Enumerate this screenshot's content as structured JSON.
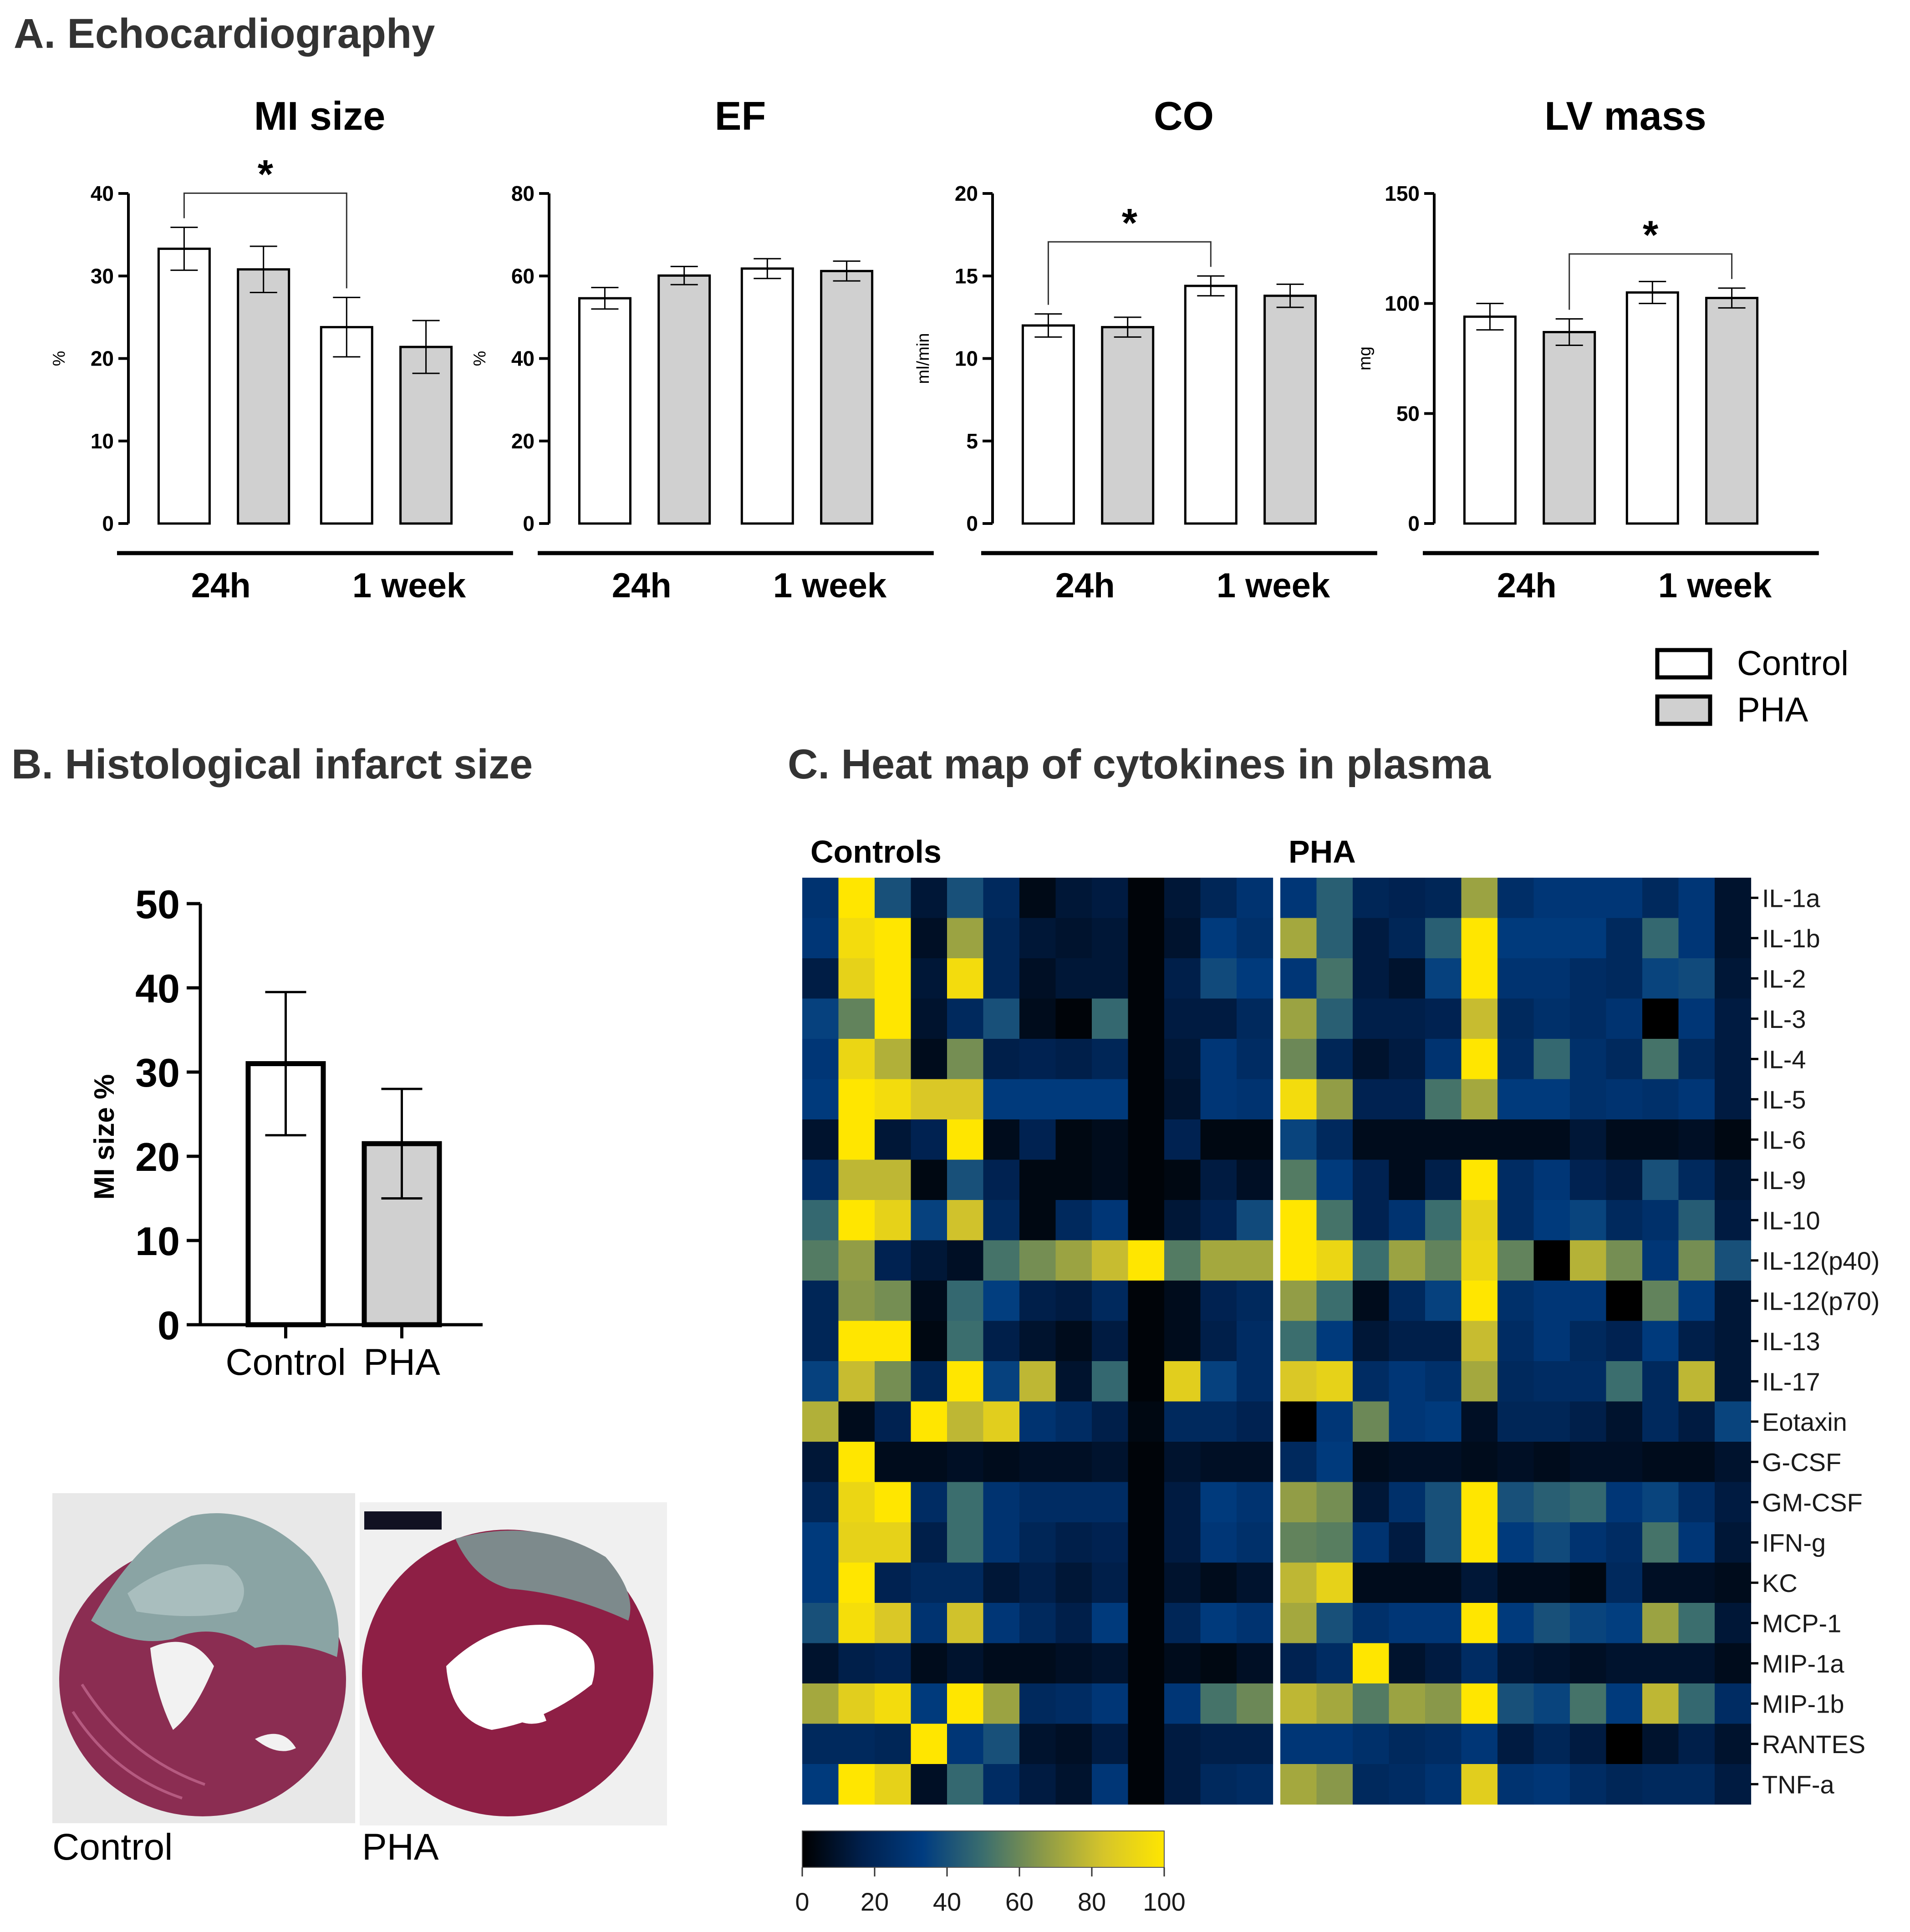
{
  "sections": {
    "a": "A. Echocardiography",
    "b": "B. Histological infarct size",
    "c": "C. Heat map of cytokines in plasma"
  },
  "legend": {
    "control": "Control",
    "pha": "PHA",
    "control_color": "#ffffff",
    "pha_color": "#d0d0d0"
  },
  "chart_data": [
    {
      "type": "bar",
      "title": "MI size",
      "ylabel": "%",
      "ylim": [
        0,
        40
      ],
      "yticks": [
        0,
        10,
        20,
        30,
        40
      ],
      "groups": [
        "24h",
        "1 week"
      ],
      "series": [
        {
          "name": "Control",
          "values": [
            33.3,
            23.8
          ],
          "errors": [
            2.6,
            3.6
          ]
        },
        {
          "name": "PHA",
          "values": [
            30.8,
            21.4
          ],
          "errors": [
            2.8,
            3.2
          ]
        }
      ],
      "significance": [
        {
          "label": "*",
          "between": [
            "Control 24h",
            "Control 1 week"
          ]
        }
      ]
    },
    {
      "type": "bar",
      "title": "EF",
      "ylabel": "%",
      "ylim": [
        0,
        80
      ],
      "yticks": [
        0,
        20,
        40,
        60,
        80
      ],
      "groups": [
        "24h",
        "1 week"
      ],
      "series": [
        {
          "name": "Control",
          "values": [
            54.6,
            61.8
          ],
          "errors": [
            2.6,
            2.4
          ]
        },
        {
          "name": "PHA",
          "values": [
            60.1,
            61.2
          ],
          "errors": [
            2.2,
            2.4
          ]
        }
      ],
      "significance": []
    },
    {
      "type": "bar",
      "title": "CO",
      "ylabel": "ml/min",
      "ylim": [
        0,
        20
      ],
      "yticks": [
        0,
        5,
        10,
        15,
        20
      ],
      "groups": [
        "24h",
        "1 week"
      ],
      "series": [
        {
          "name": "Control",
          "values": [
            12.0,
            14.4
          ],
          "errors": [
            0.7,
            0.6
          ]
        },
        {
          "name": "PHA",
          "values": [
            11.9,
            13.8
          ],
          "errors": [
            0.6,
            0.7
          ]
        }
      ],
      "significance": [
        {
          "label": "*",
          "between": [
            "Control 24h",
            "Control 1 week"
          ]
        }
      ]
    },
    {
      "type": "bar",
      "title": "LV mass",
      "ylabel": "mg",
      "ylim": [
        0,
        150
      ],
      "yticks": [
        0,
        50,
        100,
        150
      ],
      "groups": [
        "24h",
        "1 week"
      ],
      "series": [
        {
          "name": "Control",
          "values": [
            94.0,
            105.0
          ],
          "errors": [
            6.0,
            5.0
          ]
        },
        {
          "name": "PHA",
          "values": [
            87.0,
            102.5
          ],
          "errors": [
            6.0,
            4.5
          ]
        }
      ],
      "significance": [
        {
          "label": "*",
          "between": [
            "PHA 24h",
            "PHA 1 week"
          ]
        }
      ]
    },
    {
      "type": "bar",
      "title": "Histological infarct size",
      "ylabel": "MI size %",
      "ylim": [
        0,
        50
      ],
      "yticks": [
        0,
        10,
        20,
        30,
        40,
        50
      ],
      "categories": [
        "Control",
        "PHA"
      ],
      "values": [
        31.0,
        21.5
      ],
      "errors": [
        8.5,
        6.5
      ],
      "colors": [
        "#ffffff",
        "#d0d0d0"
      ]
    },
    {
      "type": "heatmap",
      "title": "Heat map of cytokines in plasma",
      "colorbar_range": [
        0,
        100
      ],
      "colorbar_ticks": [
        0,
        20,
        40,
        60,
        80,
        100
      ],
      "colormap": [
        "#000000",
        "#00204d",
        "#003c80",
        "#3b6e6e",
        "#8c9a48",
        "#d6c52a",
        "#ffe600"
      ],
      "groups": [
        {
          "name": "Controls",
          "columns": 13
        },
        {
          "name": "PHA",
          "columns": 13
        }
      ],
      "rows": [
        "IL-1a",
        "IL-1b",
        "IL-2",
        "IL-3",
        "IL-4",
        "IL-5",
        "IL-6",
        "IL-9",
        "IL-10",
        "IL-12(p40)",
        "IL-12(p70)",
        "IL-13",
        "IL-17",
        "Eotaxin",
        "G-CSF",
        "GM-CSF",
        "IFN-g",
        "KC",
        "MCP-1",
        "MIP-1a",
        "MIP-1b",
        "RANTES",
        "TNF-a"
      ],
      "values": {
        "Controls": [
          [
            28,
            100,
            40,
            12,
            40,
            22,
            5,
            12,
            14,
            2,
            12,
            20,
            28
          ],
          [
            30,
            95,
            100,
            8,
            70,
            20,
            12,
            10,
            12,
            2,
            10,
            32,
            26
          ],
          [
            15,
            90,
            100,
            12,
            95,
            20,
            8,
            12,
            12,
            2,
            16,
            38,
            32
          ],
          [
            35,
            58,
            100,
            10,
            22,
            40,
            6,
            2,
            48,
            2,
            14,
            14,
            22
          ],
          [
            30,
            92,
            75,
            6,
            62,
            16,
            18,
            16,
            20,
            2,
            12,
            30,
            24
          ],
          [
            32,
            100,
            95,
            85,
            85,
            32,
            32,
            32,
            32,
            2,
            10,
            30,
            28
          ],
          [
            10,
            100,
            12,
            18,
            100,
            6,
            18,
            4,
            6,
            2,
            18,
            4,
            4
          ],
          [
            25,
            78,
            78,
            4,
            40,
            18,
            4,
            4,
            6,
            2,
            4,
            14,
            8
          ],
          [
            48,
            100,
            90,
            35,
            82,
            22,
            4,
            22,
            30,
            2,
            12,
            18,
            38
          ],
          [
            55,
            68,
            18,
            12,
            8,
            52,
            62,
            70,
            80,
            100,
            55,
            72,
            72
          ],
          [
            20,
            66,
            62,
            6,
            48,
            34,
            16,
            14,
            22,
            2,
            6,
            18,
            22
          ],
          [
            20,
            100,
            100,
            4,
            50,
            16,
            10,
            6,
            14,
            2,
            6,
            16,
            24
          ],
          [
            35,
            80,
            62,
            20,
            100,
            35,
            78,
            10,
            48,
            2,
            88,
            35,
            24
          ],
          [
            75,
            6,
            18,
            100,
            78,
            88,
            28,
            24,
            16,
            4,
            22,
            22,
            18
          ],
          [
            12,
            100,
            6,
            6,
            8,
            6,
            8,
            8,
            10,
            2,
            10,
            8,
            8
          ],
          [
            20,
            92,
            100,
            24,
            50,
            28,
            24,
            24,
            24,
            2,
            14,
            32,
            28
          ],
          [
            32,
            90,
            90,
            16,
            50,
            28,
            20,
            16,
            18,
            2,
            14,
            30,
            26
          ],
          [
            32,
            100,
            18,
            22,
            22,
            12,
            16,
            12,
            16,
            2,
            10,
            6,
            10
          ],
          [
            40,
            96,
            85,
            28,
            82,
            30,
            22,
            16,
            32,
            2,
            20,
            32,
            28
          ],
          [
            10,
            16,
            18,
            6,
            10,
            6,
            6,
            8,
            10,
            2,
            6,
            4,
            8
          ],
          [
            72,
            88,
            95,
            32,
            100,
            70,
            22,
            24,
            30,
            2,
            30,
            52,
            60
          ],
          [
            22,
            22,
            20,
            100,
            30,
            40,
            10,
            8,
            14,
            2,
            14,
            16,
            16
          ],
          [
            32,
            100,
            90,
            8,
            48,
            24,
            14,
            10,
            30,
            2,
            14,
            22,
            24
          ]
        ],
        "PHA": [
          [
            30,
            45,
            20,
            18,
            20,
            70,
            25,
            30,
            30,
            30,
            22,
            30,
            10
          ],
          [
            72,
            45,
            14,
            20,
            45,
            100,
            32,
            32,
            32,
            22,
            48,
            30,
            10
          ],
          [
            30,
            52,
            14,
            10,
            35,
            100,
            28,
            28,
            24,
            22,
            36,
            38,
            12
          ],
          [
            70,
            45,
            16,
            16,
            18,
            80,
            22,
            26,
            24,
            28,
            0,
            30,
            14
          ],
          [
            60,
            20,
            10,
            14,
            28,
            100,
            24,
            48,
            26,
            22,
            52,
            22,
            14
          ],
          [
            95,
            68,
            18,
            18,
            52,
            72,
            32,
            32,
            26,
            28,
            26,
            30,
            14
          ],
          [
            36,
            22,
            6,
            6,
            6,
            6,
            6,
            6,
            12,
            6,
            6,
            8,
            4
          ],
          [
            55,
            32,
            18,
            6,
            16,
            100,
            24,
            30,
            18,
            14,
            40,
            22,
            12
          ],
          [
            100,
            52,
            18,
            28,
            50,
            90,
            24,
            32,
            36,
            22,
            26,
            44,
            14
          ],
          [
            100,
            92,
            50,
            70,
            58,
            92,
            58,
            0,
            76,
            62,
            30,
            62,
            40
          ],
          [
            68,
            50,
            6,
            22,
            35,
            100,
            26,
            30,
            30,
            0,
            58,
            32,
            12
          ],
          [
            50,
            32,
            12,
            16,
            16,
            80,
            24,
            30,
            22,
            18,
            32,
            16,
            12
          ],
          [
            85,
            90,
            24,
            30,
            26,
            72,
            22,
            24,
            24,
            50,
            22,
            78,
            12
          ],
          [
            0,
            30,
            60,
            30,
            32,
            8,
            20,
            20,
            16,
            10,
            22,
            14,
            36
          ],
          [
            22,
            32,
            6,
            8,
            8,
            6,
            8,
            6,
            8,
            8,
            6,
            6,
            10
          ],
          [
            68,
            62,
            12,
            26,
            40,
            100,
            40,
            45,
            48,
            30,
            36,
            24,
            14
          ],
          [
            58,
            56,
            28,
            14,
            40,
            100,
            32,
            38,
            28,
            24,
            52,
            30,
            12
          ],
          [
            78,
            90,
            6,
            6,
            6,
            12,
            6,
            6,
            4,
            22,
            8,
            8,
            6
          ],
          [
            72,
            40,
            26,
            30,
            30,
            100,
            32,
            40,
            36,
            34,
            70,
            50,
            12
          ],
          [
            18,
            24,
            100,
            10,
            14,
            24,
            12,
            10,
            8,
            10,
            10,
            10,
            6
          ],
          [
            78,
            72,
            55,
            70,
            66,
            100,
            40,
            36,
            52,
            32,
            78,
            48,
            24
          ],
          [
            30,
            30,
            26,
            22,
            24,
            30,
            14,
            20,
            14,
            0,
            10,
            16,
            10
          ],
          [
            72,
            66,
            22,
            24,
            28,
            88,
            28,
            30,
            24,
            20,
            22,
            22,
            14
          ]
        ]
      }
    }
  ],
  "histology": {
    "control_caption": "Control",
    "pha_caption": "PHA"
  }
}
